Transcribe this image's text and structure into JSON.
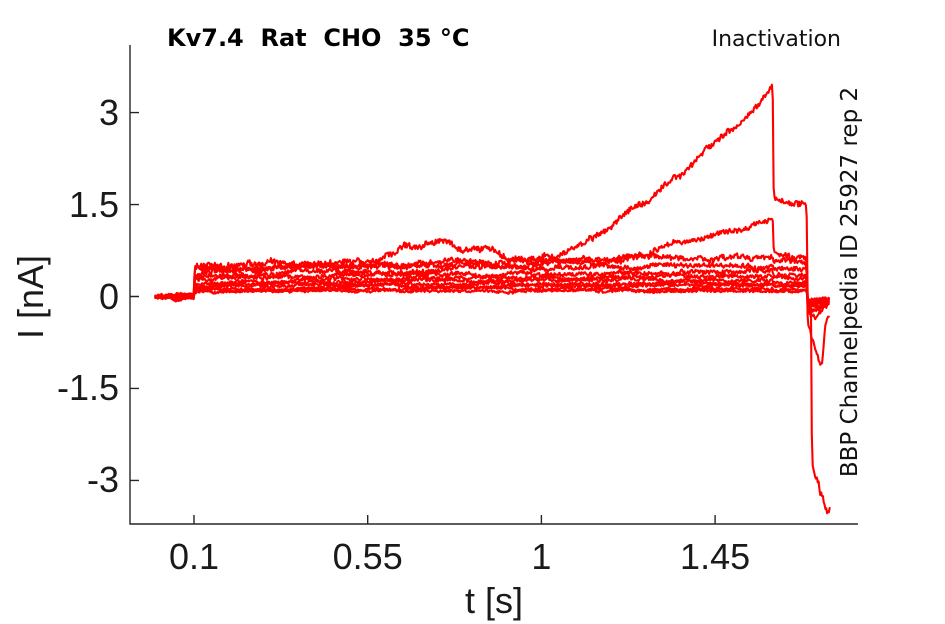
{
  "figure": {
    "title": "Kv7.4  Rat  CHO  35 °C",
    "corner_label": "Inactivation",
    "right_label": "BBP Channelpedia ID 25927 rep 2",
    "xlabel": "t [s]",
    "ylabel": "I [nA]"
  },
  "colors": {
    "trace": "#ff0000",
    "axis": "#262626",
    "text": "#1a1a1a",
    "title_text": "#000000",
    "background": "#ffffff"
  },
  "chart_data": {
    "type": "line",
    "title": "Kv7.4  Rat  CHO  35 °C",
    "subtitle": "Inactivation",
    "annotation": "BBP Channelpedia ID 25927 rep 2",
    "xlabel": "t [s]",
    "ylabel": "I [nA]",
    "grid": false,
    "legend": null,
    "x_ticks": [
      0.1,
      0.55,
      1,
      1.45
    ],
    "x_tick_labels": [
      "0.1",
      "0.55",
      "1",
      "1.45"
    ],
    "y_ticks": [
      3,
      1.5,
      0,
      -1.5,
      -3
    ],
    "y_tick_labels": [
      "3",
      "1.5",
      "0",
      "-1.5",
      "-3"
    ],
    "x_range": [
      -0.063,
      1.82
    ],
    "y_range": [
      -3.71,
      4.1
    ],
    "unit": "nA",
    "protocol": {
      "baseline_start_s": 0,
      "step_s": 0.1,
      "test_step_s": 1.6,
      "tail_step_s": 1.688,
      "end_s": 1.745,
      "peak_current_nA": 3.42,
      "min_current_nA": -3.55
    },
    "series": [
      {
        "name": "sweep-01",
        "noise": 0.025,
        "keypoints": [
          [
            0,
            0
          ],
          [
            0.099,
            0
          ],
          [
            0.102,
            0.07
          ],
          [
            0.5,
            0.09
          ],
          [
            1.0,
            0.09
          ],
          [
            1.599,
            0.1
          ],
          [
            1.602,
            0.09
          ],
          [
            1.687,
            0.09
          ],
          [
            1.69,
            -0.05
          ],
          [
            1.705,
            -0.07
          ],
          [
            1.72,
            -0.05
          ],
          [
            1.745,
            -0.04
          ]
        ]
      },
      {
        "name": "sweep-02",
        "noise": 0.027,
        "keypoints": [
          [
            0,
            0
          ],
          [
            0.099,
            0
          ],
          [
            0.102,
            0.1
          ],
          [
            0.6,
            0.13
          ],
          [
            1.2,
            0.13
          ],
          [
            1.599,
            0.14
          ],
          [
            1.602,
            0.12
          ],
          [
            1.687,
            0.12
          ],
          [
            1.69,
            -0.07
          ],
          [
            1.71,
            -0.08
          ],
          [
            1.745,
            -0.05
          ]
        ]
      },
      {
        "name": "sweep-03",
        "noise": 0.03,
        "keypoints": [
          [
            0,
            0
          ],
          [
            0.04,
            0
          ],
          [
            0.052,
            -0.06
          ],
          [
            0.066,
            -0.04
          ],
          [
            0.078,
            0
          ],
          [
            0.099,
            0
          ],
          [
            0.102,
            0.12
          ],
          [
            0.5,
            0.16
          ],
          [
            1.0,
            0.17
          ],
          [
            1.599,
            0.18
          ],
          [
            1.602,
            0.16
          ],
          [
            1.687,
            0.16
          ],
          [
            1.69,
            -0.09
          ],
          [
            1.71,
            -0.1
          ],
          [
            1.745,
            -0.06
          ]
        ]
      },
      {
        "name": "sweep-04",
        "noise": 0.032,
        "keypoints": [
          [
            0,
            0
          ],
          [
            0.099,
            0
          ],
          [
            0.102,
            0.15
          ],
          [
            0.6,
            0.2
          ],
          [
            1.1,
            0.21
          ],
          [
            1.599,
            0.22
          ],
          [
            1.602,
            0.19
          ],
          [
            1.687,
            0.19
          ],
          [
            1.69,
            -0.11
          ],
          [
            1.712,
            -0.12
          ],
          [
            1.745,
            -0.07
          ]
        ]
      },
      {
        "name": "sweep-05",
        "noise": 0.034,
        "keypoints": [
          [
            0,
            0
          ],
          [
            0.099,
            0
          ],
          [
            0.102,
            0.18
          ],
          [
            0.5,
            0.24
          ],
          [
            1.0,
            0.26
          ],
          [
            1.599,
            0.27
          ],
          [
            1.602,
            0.24
          ],
          [
            1.687,
            0.24
          ],
          [
            1.69,
            -0.13
          ],
          [
            1.715,
            -0.14
          ],
          [
            1.745,
            -0.08
          ]
        ]
      },
      {
        "name": "sweep-06",
        "noise": 0.036,
        "keypoints": [
          [
            0,
            0
          ],
          [
            0.04,
            0
          ],
          [
            0.052,
            -0.05
          ],
          [
            0.068,
            -0.03
          ],
          [
            0.08,
            0
          ],
          [
            0.099,
            0
          ],
          [
            0.102,
            0.22
          ],
          [
            0.6,
            0.29
          ],
          [
            1.2,
            0.32
          ],
          [
            1.599,
            0.33
          ],
          [
            1.602,
            0.29
          ],
          [
            1.687,
            0.29
          ],
          [
            1.69,
            -0.16
          ],
          [
            1.71,
            -0.17
          ],
          [
            1.745,
            -0.09
          ]
        ]
      },
      {
        "name": "sweep-07",
        "noise": 0.04,
        "keypoints": [
          [
            0,
            0
          ],
          [
            0.099,
            0
          ],
          [
            0.102,
            0.26
          ],
          [
            0.5,
            0.34
          ],
          [
            1.0,
            0.38
          ],
          [
            1.599,
            0.4
          ],
          [
            1.602,
            0.35
          ],
          [
            1.687,
            0.35
          ],
          [
            1.69,
            -0.2
          ],
          [
            1.708,
            -0.22
          ],
          [
            1.745,
            -0.11
          ]
        ]
      },
      {
        "name": "sweep-08",
        "noise": 0.045,
        "keypoints": [
          [
            0,
            0
          ],
          [
            0.099,
            0
          ],
          [
            0.102,
            0.32
          ],
          [
            0.4,
            0.4
          ],
          [
            0.8,
            0.45
          ],
          [
            1.2,
            0.48
          ],
          [
            1.599,
            0.5
          ],
          [
            1.602,
            0.44
          ],
          [
            1.687,
            0.43
          ],
          [
            1.69,
            -0.25
          ],
          [
            1.705,
            -0.27
          ],
          [
            1.745,
            -0.13
          ]
        ]
      },
      {
        "name": "sweep-09",
        "noise": 0.05,
        "keypoints": [
          [
            0,
            0
          ],
          [
            0.04,
            0
          ],
          [
            0.052,
            -0.06
          ],
          [
            0.068,
            -0.04
          ],
          [
            0.08,
            0
          ],
          [
            0.099,
            0
          ],
          [
            0.102,
            0.38
          ],
          [
            0.3,
            0.46
          ],
          [
            0.6,
            0.52
          ],
          [
            0.9,
            0.56
          ],
          [
            1.2,
            0.6
          ],
          [
            1.45,
            0.62
          ],
          [
            1.599,
            0.65
          ],
          [
            1.602,
            0.55
          ],
          [
            1.687,
            0.52
          ],
          [
            1.69,
            -0.3
          ],
          [
            1.71,
            -0.35
          ],
          [
            1.745,
            -0.15
          ]
        ]
      },
      {
        "name": "sweep-10",
        "noise": 0.05,
        "keypoints": [
          [
            0,
            0
          ],
          [
            0.099,
            0
          ],
          [
            0.102,
            0.44
          ],
          [
            0.3,
            0.48
          ],
          [
            0.6,
            0.5
          ],
          [
            0.9,
            0.5
          ],
          [
            1.05,
            0.52
          ],
          [
            1.15,
            0.58
          ],
          [
            1.25,
            0.68
          ],
          [
            1.35,
            0.85
          ],
          [
            1.45,
            1.02
          ],
          [
            1.52,
            1.15
          ],
          [
            1.58,
            1.26
          ],
          [
            1.599,
            1.3
          ],
          [
            1.602,
            0.72
          ],
          [
            1.645,
            0.66
          ],
          [
            1.687,
            0.62
          ],
          [
            1.69,
            -0.45
          ],
          [
            1.697,
            -0.55
          ],
          [
            1.715,
            -0.95
          ],
          [
            1.724,
            -1.15
          ],
          [
            1.729,
            -1.05
          ],
          [
            1.734,
            -0.6
          ],
          [
            1.739,
            -0.4
          ],
          [
            1.746,
            -0.32
          ]
        ]
      },
      {
        "name": "sweep-11",
        "noise": 0.055,
        "keypoints": [
          [
            0,
            0
          ],
          [
            0.099,
            0
          ],
          [
            0.102,
            0.48
          ],
          [
            0.25,
            0.55
          ],
          [
            0.45,
            0.58
          ],
          [
            0.55,
            0.62
          ],
          [
            0.62,
            0.72
          ],
          [
            0.65,
            0.8
          ],
          [
            0.68,
            0.72
          ],
          [
            0.72,
            0.78
          ],
          [
            0.76,
            0.84
          ],
          [
            0.79,
            0.72
          ],
          [
            0.83,
            0.8
          ],
          [
            0.86,
            0.82
          ],
          [
            0.9,
            0.66
          ],
          [
            0.95,
            0.62
          ],
          [
            1.0,
            0.64
          ],
          [
            1.05,
            0.72
          ],
          [
            1.1,
            0.82
          ],
          [
            1.15,
            1.0
          ],
          [
            1.2,
            1.28
          ],
          [
            1.25,
            1.52
          ],
          [
            1.28,
            1.6
          ],
          [
            1.32,
            1.8
          ],
          [
            1.36,
            1.95
          ],
          [
            1.4,
            2.18
          ],
          [
            1.44,
            2.45
          ],
          [
            1.47,
            2.6
          ],
          [
            1.5,
            2.78
          ],
          [
            1.53,
            2.95
          ],
          [
            1.56,
            3.12
          ],
          [
            1.58,
            3.28
          ],
          [
            1.595,
            3.4
          ],
          [
            1.599,
            3.42
          ],
          [
            1.602,
            1.56
          ],
          [
            1.64,
            1.52
          ],
          [
            1.687,
            1.48
          ],
          [
            1.69,
            -0.12
          ],
          [
            1.699,
            -0.16
          ],
          [
            1.701,
            -2.7
          ],
          [
            1.707,
            -2.85
          ],
          [
            1.713,
            -2.95
          ],
          [
            1.719,
            -3.05
          ],
          [
            1.723,
            -3.25
          ],
          [
            1.727,
            -3.2
          ],
          [
            1.733,
            -3.35
          ],
          [
            1.739,
            -3.45
          ],
          [
            1.744,
            -3.55
          ],
          [
            1.748,
            -3.44
          ]
        ]
      }
    ]
  }
}
